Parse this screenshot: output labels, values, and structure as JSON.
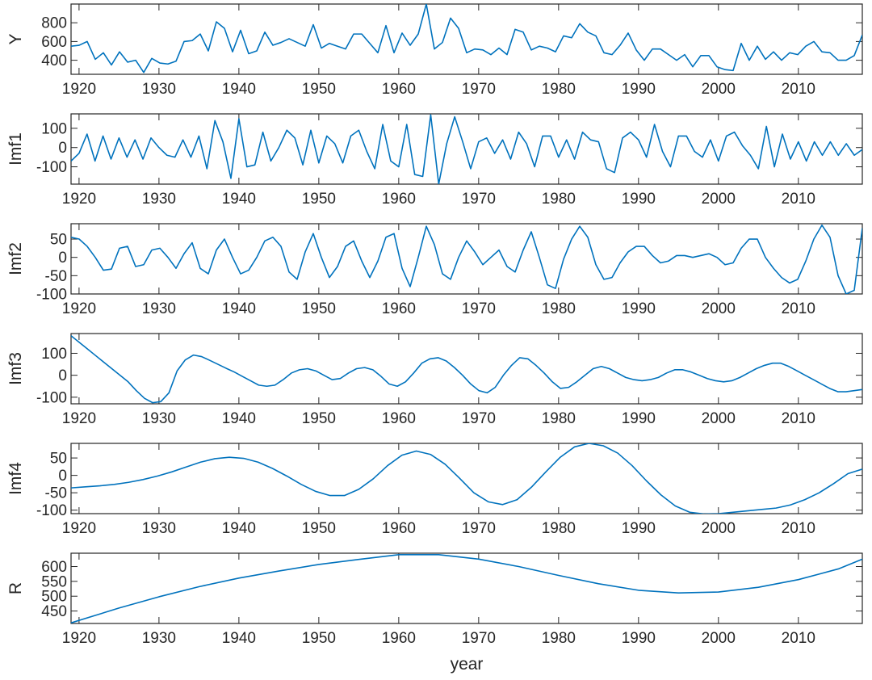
{
  "chart_data": [
    {
      "type": "line",
      "ylabel": "Y",
      "xlim": [
        1919,
        2018
      ],
      "ylim": [
        250,
        1000
      ],
      "yticks": [
        400,
        600,
        800
      ],
      "xticks": [
        1920,
        1930,
        1940,
        1950,
        1960,
        1970,
        1980,
        1990,
        2000,
        2010
      ],
      "color": "#0072bd",
      "x_start": 1919,
      "y": [
        550,
        560,
        600,
        410,
        480,
        350,
        490,
        380,
        400,
        270,
        420,
        370,
        360,
        390,
        600,
        610,
        680,
        500,
        810,
        740,
        490,
        720,
        470,
        500,
        700,
        560,
        590,
        630,
        590,
        550,
        780,
        530,
        580,
        550,
        520,
        680,
        680,
        580,
        480,
        770,
        480,
        690,
        560,
        680,
        1000,
        520,
        590,
        850,
        740,
        480,
        520,
        510,
        460,
        530,
        460,
        730,
        700,
        510,
        550,
        530,
        490,
        660,
        640,
        790,
        700,
        660,
        480,
        460,
        560,
        690,
        510,
        400,
        520,
        520,
        460,
        400,
        460,
        330,
        450,
        450,
        330,
        300,
        290,
        580,
        400,
        550,
        410,
        490,
        400,
        480,
        460,
        550,
        600,
        490,
        480,
        400,
        400,
        450,
        670
      ]
    },
    {
      "type": "line",
      "ylabel": "Imf1",
      "xlim": [
        1919,
        2018
      ],
      "ylim": [
        -190,
        175
      ],
      "yticks": [
        -100,
        0,
        100
      ],
      "xticks": [
        1920,
        1930,
        1940,
        1950,
        1960,
        1970,
        1980,
        1990,
        2000,
        2010
      ],
      "color": "#0072bd",
      "x_start": 1919,
      "y": [
        -70,
        -30,
        70,
        -70,
        60,
        -60,
        50,
        -50,
        40,
        -60,
        50,
        0,
        -40,
        -50,
        40,
        -50,
        60,
        -110,
        140,
        30,
        -160,
        150,
        -100,
        -90,
        80,
        -70,
        0,
        90,
        50,
        -90,
        90,
        -80,
        60,
        20,
        -80,
        60,
        90,
        -20,
        -110,
        120,
        -70,
        -100,
        120,
        -140,
        -150,
        170,
        -190,
        20,
        160,
        30,
        -110,
        30,
        50,
        -30,
        40,
        -60,
        80,
        20,
        -100,
        60,
        60,
        -50,
        40,
        -60,
        80,
        40,
        30,
        -110,
        -130,
        50,
        80,
        40,
        -50,
        120,
        -20,
        -100,
        60,
        60,
        -20,
        -50,
        40,
        -70,
        60,
        80,
        10,
        -40,
        -110,
        110,
        -100,
        70,
        -60,
        30,
        -70,
        30,
        -40,
        30,
        -40,
        20,
        -40,
        -10,
        -20,
        -40,
        30
      ]
    },
    {
      "type": "line",
      "ylabel": "Imf2",
      "xlim": [
        1919,
        2018
      ],
      "ylim": [
        -100,
        92
      ],
      "yticks": [
        -100,
        -50,
        0,
        50
      ],
      "xticks": [
        1920,
        1930,
        1940,
        1950,
        1960,
        1970,
        1980,
        1990,
        2000,
        2010
      ],
      "color": "#0072bd",
      "x_start": 1919,
      "y": [
        55,
        50,
        30,
        0,
        -35,
        -32,
        25,
        30,
        -25,
        -20,
        20,
        25,
        0,
        -30,
        10,
        40,
        -30,
        -45,
        20,
        50,
        0,
        -45,
        -35,
        0,
        45,
        55,
        30,
        -40,
        -60,
        15,
        65,
        0,
        -55,
        -25,
        30,
        45,
        -10,
        -55,
        -10,
        55,
        65,
        -30,
        -80,
        0,
        85,
        35,
        -45,
        -60,
        0,
        45,
        15,
        -20,
        0,
        20,
        -25,
        -40,
        20,
        70,
        0,
        -75,
        -85,
        -5,
        50,
        85,
        55,
        -20,
        -60,
        -55,
        -15,
        15,
        30,
        30,
        5,
        -15,
        -10,
        5,
        5,
        0,
        5,
        10,
        0,
        -20,
        -15,
        25,
        50,
        50,
        0,
        -30,
        -55,
        -70,
        -60,
        -10,
        50,
        88,
        55,
        -50,
        -100,
        -90,
        80
      ]
    },
    {
      "type": "line",
      "ylabel": "Imf3",
      "xlim": [
        1919,
        2018
      ],
      "ylim": [
        -130,
        190
      ],
      "yticks": [
        -100,
        0,
        100
      ],
      "xticks": [
        1920,
        1930,
        1940,
        1950,
        1960,
        1970,
        1980,
        1990,
        2000,
        2010
      ],
      "color": "#0072bd",
      "x_start": 1919,
      "y": [
        180,
        150,
        120,
        90,
        60,
        30,
        0,
        -30,
        -70,
        -105,
        -125,
        -120,
        -80,
        20,
        70,
        92,
        85,
        68,
        50,
        32,
        15,
        -5,
        -25,
        -45,
        -50,
        -45,
        -20,
        10,
        25,
        30,
        20,
        0,
        -20,
        -15,
        10,
        30,
        35,
        25,
        -5,
        -40,
        -50,
        -30,
        10,
        55,
        75,
        80,
        65,
        35,
        0,
        -40,
        -70,
        -80,
        -55,
        0,
        45,
        80,
        75,
        45,
        10,
        -30,
        -60,
        -55,
        -30,
        0,
        30,
        40,
        30,
        10,
        -10,
        -20,
        -25,
        -20,
        -10,
        10,
        25,
        25,
        15,
        0,
        -15,
        -25,
        -30,
        -25,
        -10,
        10,
        30,
        45,
        55,
        55,
        40,
        20,
        0,
        -20,
        -40,
        -60,
        -75,
        -75,
        -70,
        -65
      ]
    },
    {
      "type": "line",
      "ylabel": "Imf4",
      "xlim": [
        1919,
        2018
      ],
      "ylim": [
        -110,
        92
      ],
      "yticks": [
        -100,
        -50,
        0,
        50
      ],
      "xticks": [
        1920,
        1930,
        1940,
        1950,
        1960,
        1970,
        1980,
        1990,
        2000,
        2010
      ],
      "color": "#0072bd",
      "x_start": 1919,
      "y": [
        -36,
        -33,
        -30,
        -26,
        -20,
        -12,
        -2,
        10,
        24,
        38,
        48,
        52,
        49,
        38,
        20,
        -2,
        -26,
        -46,
        -58,
        -58,
        -40,
        -10,
        28,
        58,
        70,
        60,
        32,
        -8,
        -50,
        -76,
        -84,
        -70,
        -34,
        10,
        52,
        82,
        92,
        85,
        64,
        28,
        -16,
        -56,
        -88,
        -106,
        -111,
        -110,
        -106,
        -102,
        -98,
        -94,
        -85,
        -70,
        -50,
        -24,
        5,
        18
      ]
    },
    {
      "type": "line",
      "ylabel": "R",
      "xlabel": "year",
      "xlim": [
        1919,
        2018
      ],
      "ylim": [
        408,
        645
      ],
      "yticks": [
        450,
        500,
        550,
        600
      ],
      "xticks": [
        1920,
        1930,
        1940,
        1950,
        1960,
        1970,
        1980,
        1990,
        2000,
        2010
      ],
      "color": "#0072bd",
      "x": [
        1919,
        1925,
        1930,
        1935,
        1940,
        1945,
        1950,
        1955,
        1960,
        1965,
        1970,
        1975,
        1980,
        1985,
        1990,
        1995,
        2000,
        2005,
        2010,
        2015,
        2018
      ],
      "y": [
        410,
        460,
        498,
        532,
        561,
        585,
        607,
        624,
        640,
        640,
        625,
        600,
        570,
        542,
        520,
        511,
        514,
        530,
        556,
        592,
        625
      ]
    }
  ]
}
